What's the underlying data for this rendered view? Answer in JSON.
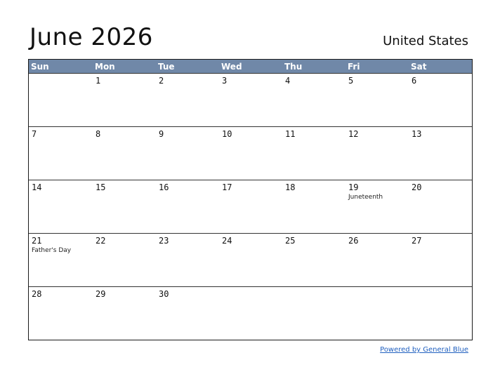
{
  "title": "June 2026",
  "country": "United States",
  "weekdays": [
    "Sun",
    "Mon",
    "Tue",
    "Wed",
    "Thu",
    "Fri",
    "Sat"
  ],
  "weeks": [
    [
      {
        "day": ""
      },
      {
        "day": "1"
      },
      {
        "day": "2"
      },
      {
        "day": "3"
      },
      {
        "day": "4"
      },
      {
        "day": "5"
      },
      {
        "day": "6"
      }
    ],
    [
      {
        "day": "7"
      },
      {
        "day": "8"
      },
      {
        "day": "9"
      },
      {
        "day": "10"
      },
      {
        "day": "11"
      },
      {
        "day": "12"
      },
      {
        "day": "13"
      }
    ],
    [
      {
        "day": "14"
      },
      {
        "day": "15"
      },
      {
        "day": "16"
      },
      {
        "day": "17"
      },
      {
        "day": "18"
      },
      {
        "day": "19",
        "holiday": "Juneteenth"
      },
      {
        "day": "20"
      }
    ],
    [
      {
        "day": "21",
        "holiday": "Father's Day"
      },
      {
        "day": "22"
      },
      {
        "day": "23"
      },
      {
        "day": "24"
      },
      {
        "day": "25"
      },
      {
        "day": "26"
      },
      {
        "day": "27"
      }
    ],
    [
      {
        "day": "28"
      },
      {
        "day": "29"
      },
      {
        "day": "30"
      },
      {
        "day": ""
      },
      {
        "day": ""
      },
      {
        "day": ""
      },
      {
        "day": ""
      }
    ]
  ],
  "footer": {
    "link_text": "Powered by General Blue"
  },
  "colors": {
    "header_bg": "#7088a8",
    "link": "#1f5fbf"
  }
}
